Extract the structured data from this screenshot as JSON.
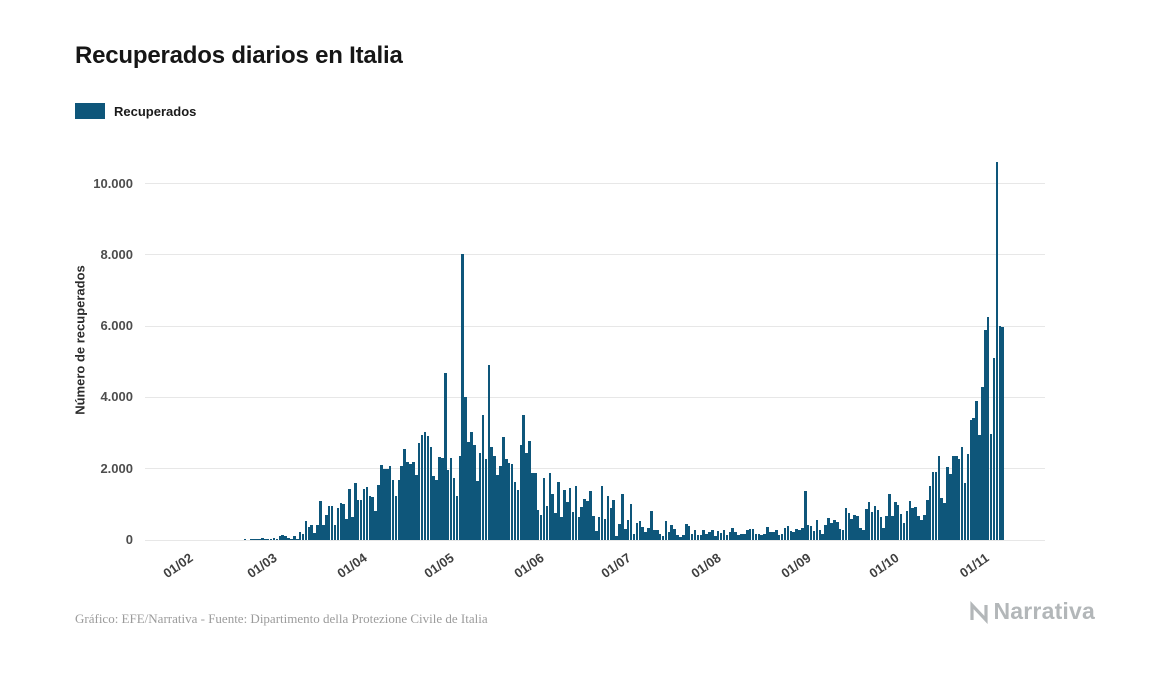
{
  "title": "Recuperados diarios en Italia",
  "legend": {
    "label": "Recuperados"
  },
  "y_axis_title": "Número de recuperados",
  "footer": {
    "credit": "Gráfico: EFE/Narrativa - Fuente: Dipartimento della Protezione Civile de Italia"
  },
  "brand": {
    "name": "Narrativa"
  },
  "chart_data": {
    "type": "bar",
    "title": "Recuperados diarios en Italia",
    "series_name": "Recuperados",
    "bar_color": "#0e567a",
    "xlabel": "",
    "ylabel": "Número de recuperados",
    "grid": "horizontal",
    "legend_position": "top-left",
    "x_start": "01/02",
    "x_tick_labels": [
      "01/02",
      "01/03",
      "01/04",
      "01/05",
      "01/06",
      "01/07",
      "01/08",
      "01/09",
      "01/10",
      "01/11"
    ],
    "x_tick_day_index": [
      0,
      29,
      60,
      90,
      121,
      151,
      182,
      213,
      243,
      274
    ],
    "y_ticks": [
      0,
      2000,
      4000,
      6000,
      8000,
      10000
    ],
    "y_tick_labels": [
      "0",
      "2.000",
      "4.000",
      "6.000",
      "8.000",
      "10.000"
    ],
    "ylim": [
      0,
      11000
    ],
    "lead_days": 14,
    "trail_days": 14,
    "values": [
      0,
      0,
      0,
      0,
      0,
      0,
      0,
      0,
      0,
      0,
      0,
      0,
      0,
      0,
      0,
      0,
      0,
      0,
      0,
      0,
      1,
      0,
      2,
      1,
      1,
      3,
      45,
      5,
      38,
      33,
      66,
      11,
      116,
      138,
      109,
      66,
      33,
      102,
      41,
      213,
      181,
      527,
      369,
      414,
      192,
      415,
      1084,
      415,
      689,
      943,
      952,
      408,
      894,
      1036,
      999,
      589,
      1434,
      646,
      1590,
      1109,
      1118,
      1431,
      1480,
      1238,
      1210,
      819,
      1555,
      2099,
      1979,
      1985,
      2079,
      1677,
      1224,
      1695,
      2072,
      2563,
      2200,
      2128,
      2200,
      1822,
      2723,
      2943,
      3033,
      2922,
      2622,
      1808,
      1696,
      2317,
      2311,
      4693,
      1965,
      2304,
      1740,
      1225,
      2352,
      8014,
      4008,
      2747,
      3031,
      2657,
      1669,
      2452,
      3502,
      2278,
      4917,
      2605,
      2366,
      1836,
      2075,
      2881,
      2278,
      2160,
      2120,
      1639,
      1402,
      2677,
      3503,
      2443,
      2789,
      1874,
      1886,
      848,
      708,
      1737,
      957,
      1886,
      1297,
      747,
      1618,
      640,
      1399,
      1062,
      1469,
      789,
      1505,
      640,
      922,
      1159,
      1089,
      1363,
      667,
      264,
      640,
      1526,
      577,
      1235,
      890,
      1120,
      111,
      440,
      1293,
      305,
      574,
      999,
      164,
      477,
      533,
      374,
      223,
      338,
      825,
      276,
      295,
      172,
      114,
      534,
      230,
      429,
      305,
      147,
      91,
      129,
      446,
      381,
      160,
      275,
      145,
      154,
      287,
      170,
      230,
      281,
      123,
      240,
      183,
      288,
      138,
      213,
      330,
      224,
      143,
      172,
      182,
      276,
      298,
      305,
      163,
      182,
      148,
      172,
      364,
      224,
      234,
      289,
      154,
      182,
      348,
      381,
      247,
      217,
      311,
      286,
      348,
      1365,
      417,
      395,
      249,
      552,
      272,
      174,
      430,
      631,
      475,
      556,
      508,
      316,
      274,
      904,
      746,
      584,
      694,
      667,
      334,
      276,
      868,
      1058,
      793,
      959,
      846,
      657,
      336,
      683,
      1281,
      676,
      1057,
      989,
      734,
      478,
      813,
      1088,
      909,
      935,
      674,
      563,
      696,
      1132,
      1510,
      1899,
      1908,
      2369,
      1186,
      1040,
      2046,
      1862,
      2352,
      2369,
      2280,
      2622,
      1607,
      2423,
      3362,
      3415,
      3908,
      2954,
      4285,
      5900,
      6258,
      2966,
      5103,
      10603,
      6003,
      5966
    ]
  }
}
